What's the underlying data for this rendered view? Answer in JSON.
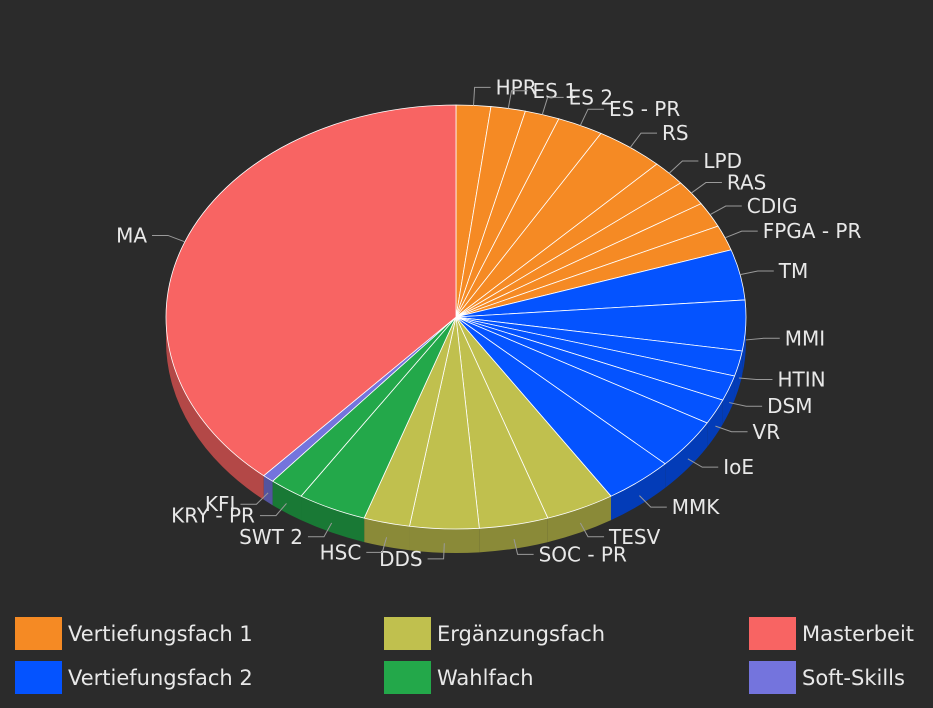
{
  "chart_data": {
    "type": "pie",
    "style": "3d",
    "title": "",
    "slices": [
      {
        "label": "HPR",
        "value": 1.5,
        "group": "Vertiefungsfach 1"
      },
      {
        "label": "ES 1",
        "value": 1.5,
        "group": "Vertiefungsfach 1"
      },
      {
        "label": "ES 2",
        "value": 1.5,
        "group": "Vertiefungsfach 1"
      },
      {
        "label": "ES - PR",
        "value": 2.0,
        "group": "Vertiefungsfach 1"
      },
      {
        "label": "RS",
        "value": 3.0,
        "group": "Vertiefungsfach 1"
      },
      {
        "label": "LPD",
        "value": 1.5,
        "group": "Vertiefungsfach 1"
      },
      {
        "label": "RAS",
        "value": 1.5,
        "group": "Vertiefungsfach 1"
      },
      {
        "label": "CDIG",
        "value": 1.5,
        "group": "Vertiefungsfach 1"
      },
      {
        "label": "FPGA - PR",
        "value": 1.5,
        "group": "Vertiefungsfach 1"
      },
      {
        "label": "TM",
        "value": 3.0,
        "group": "Vertiefungsfach 2"
      },
      {
        "label": "MMI",
        "value": 3.0,
        "group": "Vertiefungsfach 2"
      },
      {
        "label": "HTIN",
        "value": 1.5,
        "group": "Vertiefungsfach 2"
      },
      {
        "label": "DSM",
        "value": 1.5,
        "group": "Vertiefungsfach 2"
      },
      {
        "label": "VR",
        "value": 1.5,
        "group": "Vertiefungsfach 2"
      },
      {
        "label": "IoE",
        "value": 3.0,
        "group": "Vertiefungsfach 2"
      },
      {
        "label": "MMK",
        "value": 3.0,
        "group": "Vertiefungsfach 2"
      },
      {
        "label": "TESV",
        "value": 3.0,
        "group": "Ergänzungsfach"
      },
      {
        "label": "SOC - PR",
        "value": 3.0,
        "group": "Ergänzungsfach"
      },
      {
        "label": "DDS",
        "value": 3.0,
        "group": "Ergänzungsfach"
      },
      {
        "label": "HSC",
        "value": 2.0,
        "group": "Ergänzungsfach"
      },
      {
        "label": "SWT 2",
        "value": 3.0,
        "group": "Wahlfach"
      },
      {
        "label": "KRY - PR",
        "value": 1.5,
        "group": "Wahlfach"
      },
      {
        "label": "KFI",
        "value": 0.5,
        "group": "Soft-Skills"
      },
      {
        "label": "MA",
        "value": 30.0,
        "group": "Masterbeit"
      }
    ],
    "legend": {
      "placement": "bottom",
      "items": [
        {
          "label": "Vertiefungsfach 1",
          "color": "#f58a24"
        },
        {
          "label": "Vertiefungsfach 2",
          "color": "#0453ff"
        },
        {
          "label": "Ergänzungsfach",
          "color": "#c0c04e"
        },
        {
          "label": "Wahlfach",
          "color": "#23a84a"
        },
        {
          "label": "Masterbeit",
          "color": "#f86463"
        },
        {
          "label": "Soft-Skills",
          "color": "#7474dd"
        }
      ]
    },
    "colors": {
      "background": "#2b2b2b",
      "label_text": "#e8e8e8",
      "leader_line": "#9a9a9a",
      "slice_border": "#ffffff"
    }
  }
}
